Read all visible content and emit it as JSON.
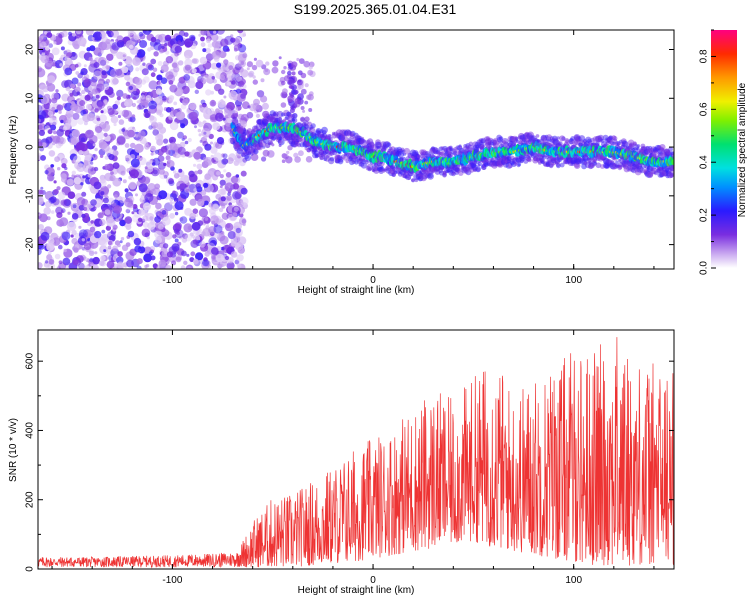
{
  "title": "S199.2025.365.01.04.E31",
  "chart_data": [
    {
      "type": "heatmap",
      "id": "spectrogram",
      "xlabel": "Height of straight line (km)",
      "ylabel": "Frequency (Hz)",
      "xlim": [
        -167,
        150
      ],
      "ylim": [
        -25,
        24
      ],
      "xticks": [
        -100,
        0,
        100
      ],
      "yticks": [
        -20,
        -10,
        0,
        10,
        20
      ],
      "noise_region_x": [
        -167,
        -66
      ],
      "track": {
        "x": [
          -70,
          -64,
          -58,
          -50,
          -42,
          -35,
          -28,
          -20,
          -12,
          -5,
          0,
          5,
          12,
          20,
          30,
          40,
          50,
          60,
          70,
          80,
          90,
          100,
          110,
          120,
          130,
          140,
          148
        ],
        "freq": [
          4,
          0,
          2,
          4,
          4,
          3,
          1,
          0,
          0,
          -1,
          -2,
          -2,
          -3,
          -4,
          -3,
          -3,
          -2,
          -1,
          -1,
          0,
          -1,
          -1,
          -1,
          -1,
          -2,
          -3,
          -3
        ]
      },
      "colorbar": {
        "label": "Normalized spectral amplitude",
        "range": [
          0.0,
          0.9
        ],
        "ticks": [
          "0.0",
          "0.2",
          "0.4",
          "0.6",
          "0.8"
        ]
      }
    },
    {
      "type": "line",
      "id": "snr",
      "xlabel": "Height of straight line (km)",
      "ylabel": "SNR (10 * v/v)",
      "xlim": [
        -167,
        150
      ],
      "ylim": [
        0,
        690
      ],
      "xticks": [
        -100,
        0,
        100
      ],
      "yticks": [
        0,
        200,
        400,
        600
      ],
      "color": "#ee3333",
      "envelope": {
        "x": [
          -167,
          -140,
          -100,
          -80,
          -68,
          -60,
          -50,
          -40,
          -30,
          -20,
          -10,
          0,
          10,
          20,
          30,
          40,
          50,
          60,
          70,
          80,
          90,
          100,
          110,
          120,
          130,
          140,
          150
        ],
        "min": [
          5,
          5,
          5,
          5,
          5,
          5,
          5,
          5,
          10,
          15,
          20,
          30,
          40,
          50,
          60,
          70,
          80,
          60,
          50,
          40,
          30,
          20,
          10,
          10,
          10,
          10,
          10
        ],
        "max": [
          35,
          35,
          40,
          45,
          50,
          140,
          210,
          220,
          260,
          300,
          350,
          380,
          420,
          470,
          520,
          490,
          560,
          620,
          520,
          560,
          600,
          640,
          640,
          690,
          620,
          600,
          590
        ]
      }
    }
  ]
}
